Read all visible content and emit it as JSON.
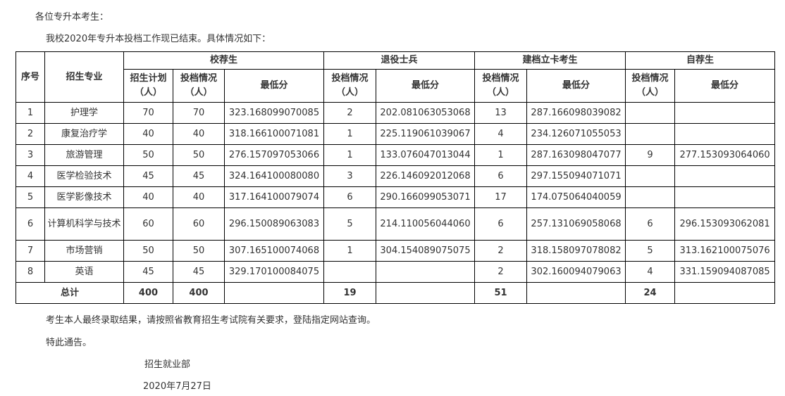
{
  "greeting": "各位专升本考生：",
  "intro": "我校2020年专升本投档工作现已结束。具体情况如下：",
  "table": {
    "headers": {
      "seq": "序号",
      "major": "招生专业",
      "groups": [
        "校荐生",
        "退役士兵",
        "建档立卡考生",
        "自荐生"
      ],
      "plan": "招生计划（人）",
      "filed": "投档情况（人）",
      "min_score": "最低分"
    },
    "rows": [
      {
        "seq": "1",
        "major": "护理学",
        "plan": "70",
        "filed": "70",
        "min": "323.168099070085",
        "vet_filed": "2",
        "vet_min": "202.081063053068",
        "poor_filed": "13",
        "poor_min": "287.166098039082",
        "self_filed": "",
        "self_min": ""
      },
      {
        "seq": "2",
        "major": "康复治疗学",
        "plan": "40",
        "filed": "40",
        "min": "318.166100071081",
        "vet_filed": "1",
        "vet_min": "225.119061039067",
        "poor_filed": "4",
        "poor_min": "234.126071055053",
        "self_filed": "",
        "self_min": ""
      },
      {
        "seq": "3",
        "major": "旅游管理",
        "plan": "50",
        "filed": "50",
        "min": "276.157097053066",
        "vet_filed": "1",
        "vet_min": "133.076047013044",
        "poor_filed": "1",
        "poor_min": "287.163098047077",
        "self_filed": "9",
        "self_min": "277.153093064060"
      },
      {
        "seq": "4",
        "major": "医学检验技术",
        "plan": "45",
        "filed": "45",
        "min": "324.164100080080",
        "vet_filed": "3",
        "vet_min": "226.146092012068",
        "poor_filed": "6",
        "poor_min": "297.155094071071",
        "self_filed": "",
        "self_min": ""
      },
      {
        "seq": "5",
        "major": "医学影像技术",
        "plan": "40",
        "filed": "40",
        "min": "317.164100079074",
        "vet_filed": "6",
        "vet_min": "290.166099053071",
        "poor_filed": "17",
        "poor_min": "174.075064040059",
        "self_filed": "",
        "self_min": ""
      },
      {
        "seq": "6",
        "major": "计算机科学与技术",
        "plan": "60",
        "filed": "60",
        "min": "296.150089063083",
        "vet_filed": "5",
        "vet_min": "214.110056044060",
        "poor_filed": "6",
        "poor_min": "257.131069058068",
        "self_filed": "6",
        "self_min": "296.153093062081"
      },
      {
        "seq": "7",
        "major": "市场营销",
        "plan": "50",
        "filed": "50",
        "min": "307.165100074068",
        "vet_filed": "1",
        "vet_min": "304.154089075075",
        "poor_filed": "2",
        "poor_min": "318.158097078082",
        "self_filed": "5",
        "self_min": "313.162100075076"
      },
      {
        "seq": "8",
        "major": "英语",
        "plan": "45",
        "filed": "45",
        "min": "329.170100084075",
        "vet_filed": "",
        "vet_min": "",
        "poor_filed": "2",
        "poor_min": "302.160094079063",
        "self_filed": "4",
        "self_min": "331.159094087085"
      }
    ],
    "total": {
      "label": "总计",
      "plan": "400",
      "filed": "400",
      "vet_filed": "19",
      "poor_filed": "51",
      "self_filed": "24"
    }
  },
  "notice": "考生本人最终录取结果，请按照省教育招生考试院有关要求，登陆指定网站查询。",
  "closing": "特此通告。",
  "signature": "招生就业部",
  "date": "2020年7月27日"
}
